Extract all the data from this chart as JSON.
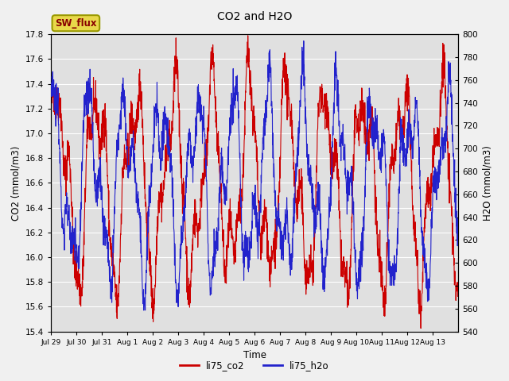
{
  "title": "CO2 and H2O",
  "xlabel": "Time",
  "ylabel_left": "CO2 (mmol/m3)",
  "ylabel_right": "H2O (mmol/m3)",
  "left_label": "SW_flux",
  "legend_labels": [
    "li75_co2",
    "li75_h2o"
  ],
  "co2_color": "#cc0000",
  "h2o_color": "#2222cc",
  "ylim_left": [
    15.4,
    17.8
  ],
  "ylim_right": [
    540,
    800
  ],
  "fig_bg_color": "#f0f0f0",
  "plot_bg_color": "#e0e0e0",
  "label_box_facecolor": "#e8d84a",
  "label_box_edgecolor": "#999900",
  "label_text_color": "#880000",
  "xtick_labels": [
    "Jul 29",
    "Jul 30",
    "Jul 31",
    "Aug 1",
    "Aug 2",
    "Aug 3",
    "Aug 4",
    "Aug 5",
    "Aug 6",
    "Aug 7",
    "Aug 8",
    "Aug 9",
    "Aug 10",
    "Aug 11",
    "Aug 12",
    "Aug 13"
  ],
  "yticks_left": [
    15.4,
    15.6,
    15.8,
    16.0,
    16.2,
    16.4,
    16.6,
    16.8,
    17.0,
    17.2,
    17.4,
    17.6,
    17.8
  ],
  "yticks_right": [
    540,
    560,
    580,
    600,
    620,
    640,
    660,
    680,
    700,
    720,
    740,
    760,
    780,
    800
  ],
  "seed": 42,
  "n_points": 2000
}
